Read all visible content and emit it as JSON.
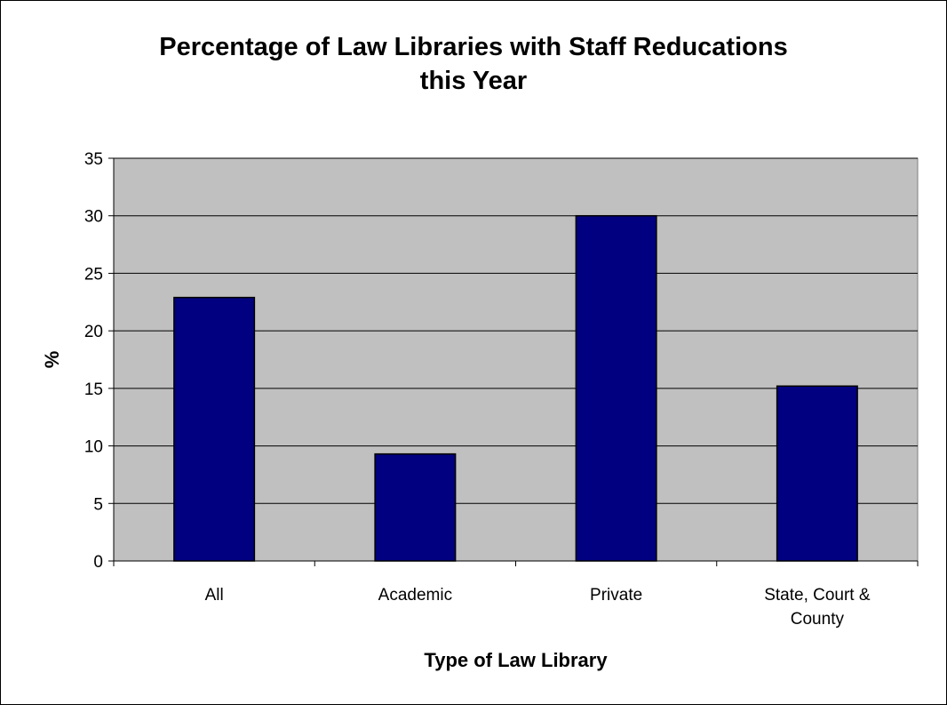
{
  "chart_data": {
    "type": "bar",
    "title_lines": [
      "Percentage of Law Libraries with Staff Reducations",
      "this Year"
    ],
    "xlabel": "Type of Law Library",
    "ylabel": "%",
    "categories": [
      [
        "All"
      ],
      [
        "Academic"
      ],
      [
        "Private"
      ],
      [
        "State, Court &",
        "County"
      ]
    ],
    "values": [
      22.9,
      9.3,
      30.0,
      15.2
    ],
    "ylim": [
      0,
      35
    ],
    "yticks": [
      "0",
      "5",
      "10",
      "15",
      "20",
      "25",
      "30",
      "35"
    ],
    "grid": true,
    "legend": "none"
  },
  "colors": {
    "bar": "#000080",
    "plot_background": "#c0c0c0",
    "gridline": "#000000"
  }
}
